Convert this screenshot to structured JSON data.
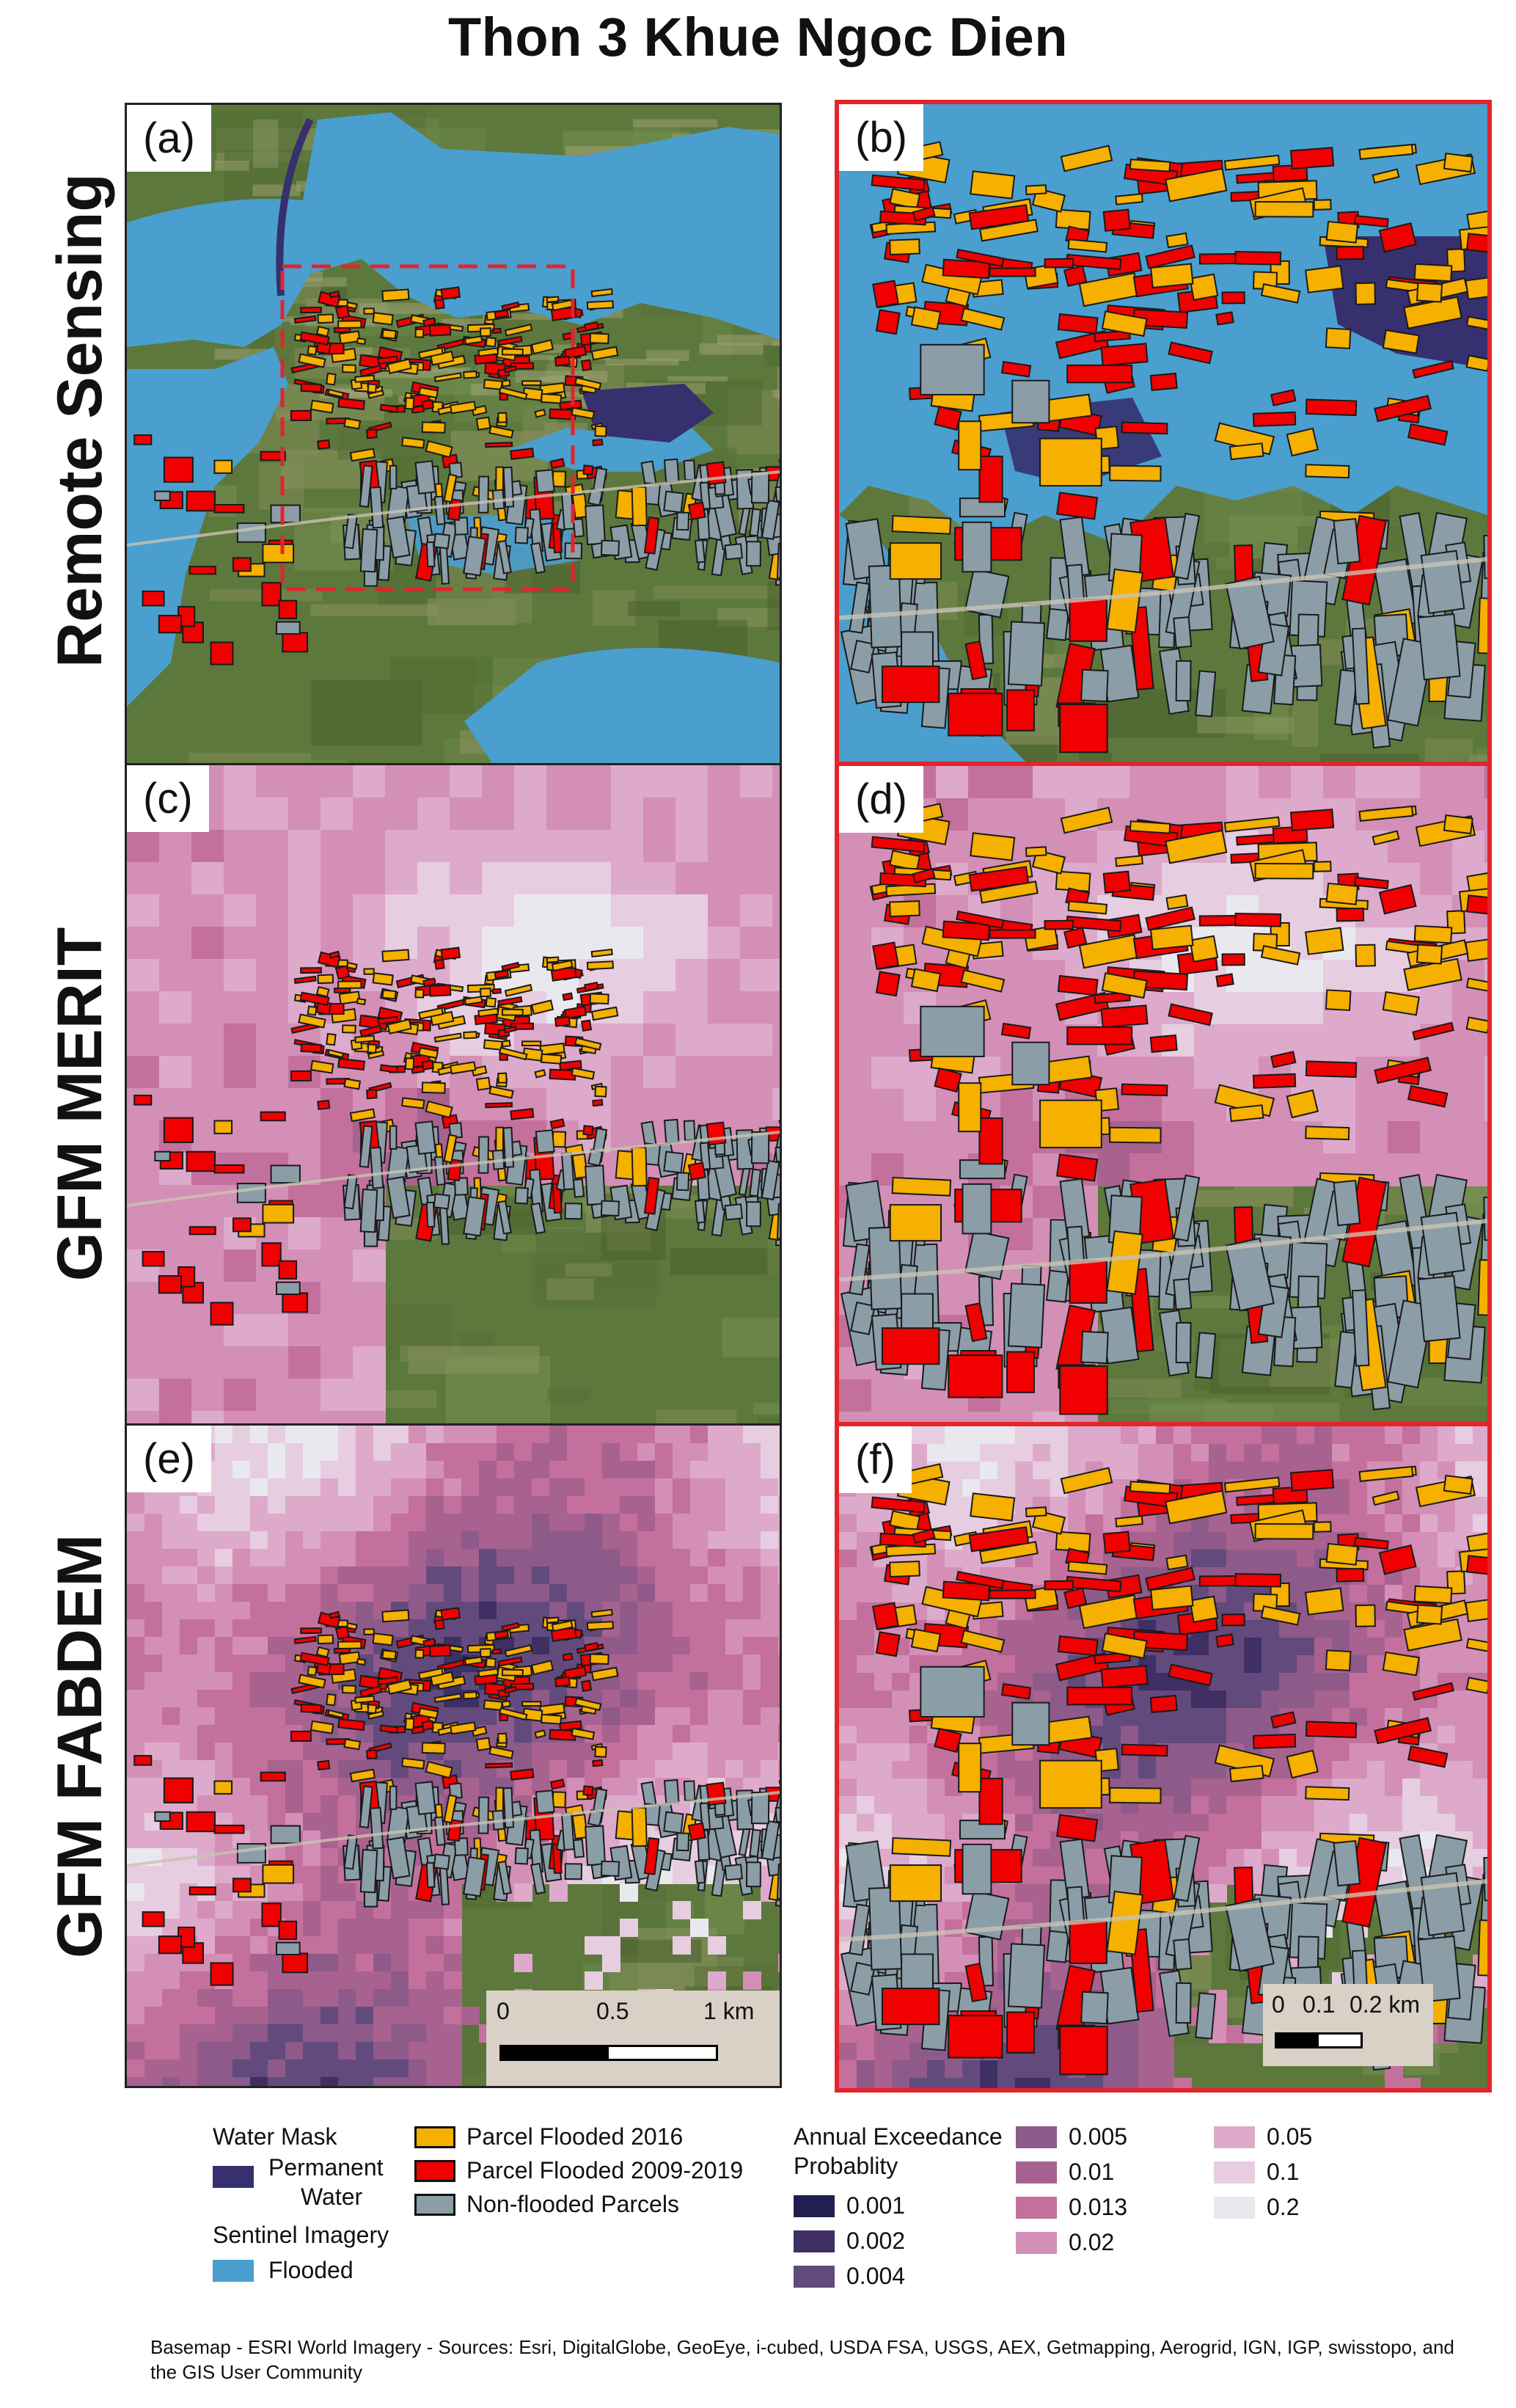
{
  "title": "Thon 3 Khue Ngoc Dien",
  "rows": [
    {
      "label": "Remote Sensing"
    },
    {
      "label": "GFM MERIT"
    },
    {
      "label": "GFM FABDEM"
    }
  ],
  "panels": [
    {
      "label": "(a)",
      "view": "overview",
      "layer": "remote_sensing"
    },
    {
      "label": "(b)",
      "view": "zoom",
      "layer": "remote_sensing"
    },
    {
      "label": "(c)",
      "view": "overview",
      "layer": "merit"
    },
    {
      "label": "(d)",
      "view": "zoom",
      "layer": "merit"
    },
    {
      "label": "(e)",
      "view": "overview",
      "layer": "fabdem"
    },
    {
      "label": "(f)",
      "view": "zoom",
      "layer": "fabdem"
    }
  ],
  "scalebars": {
    "overview": {
      "labels": [
        "0",
        "0.5",
        "1 km"
      ]
    },
    "zoom": {
      "labels": [
        "0",
        "0.1",
        "0.2 km"
      ]
    }
  },
  "legend": {
    "water_mask": {
      "heading": "Water Mask",
      "permanent_water": {
        "label_line1": "Permanent",
        "label_line2": "Water",
        "color": "#36306e"
      }
    },
    "sentinel": {
      "heading": "Sentinel Imagery",
      "flooded": {
        "label": "Flooded",
        "color": "#4a9fcf"
      }
    },
    "parcels": [
      {
        "label": "Parcel Flooded 2016",
        "color": "#f5b000"
      },
      {
        "label": "Parcel Flooded 2009-2019",
        "color": "#f00000"
      },
      {
        "label": "Non-flooded Parcels",
        "color": "#8b9ea8"
      }
    ],
    "aep": {
      "heading_line1": "Annual Exceedance",
      "heading_line2": "Probablity",
      "classes": [
        {
          "label": "0.001",
          "color": "#221f50"
        },
        {
          "label": "0.002",
          "color": "#3f2f64"
        },
        {
          "label": "0.004",
          "color": "#634a7c"
        },
        {
          "label": "0.005",
          "color": "#8e5a8a"
        },
        {
          "label": "0.01",
          "color": "#a8628f"
        },
        {
          "label": "0.013",
          "color": "#c4709c"
        },
        {
          "label": "0.02",
          "color": "#d38fb6"
        },
        {
          "label": "0.05",
          "color": "#ddaacb"
        },
        {
          "label": "0.1",
          "color": "#e6cde0"
        },
        {
          "label": "0.2",
          "color": "#e9e8ef"
        }
      ]
    }
  },
  "attribution": "Basemap - ESRI World Imagery - Sources: Esri, DigitalGlobe, GeoEye, i-cubed, USDA FSA, USGS, AEX, Getmapping, Aerogrid, IGN, IGP, swisstopo, and the GIS User Community"
}
